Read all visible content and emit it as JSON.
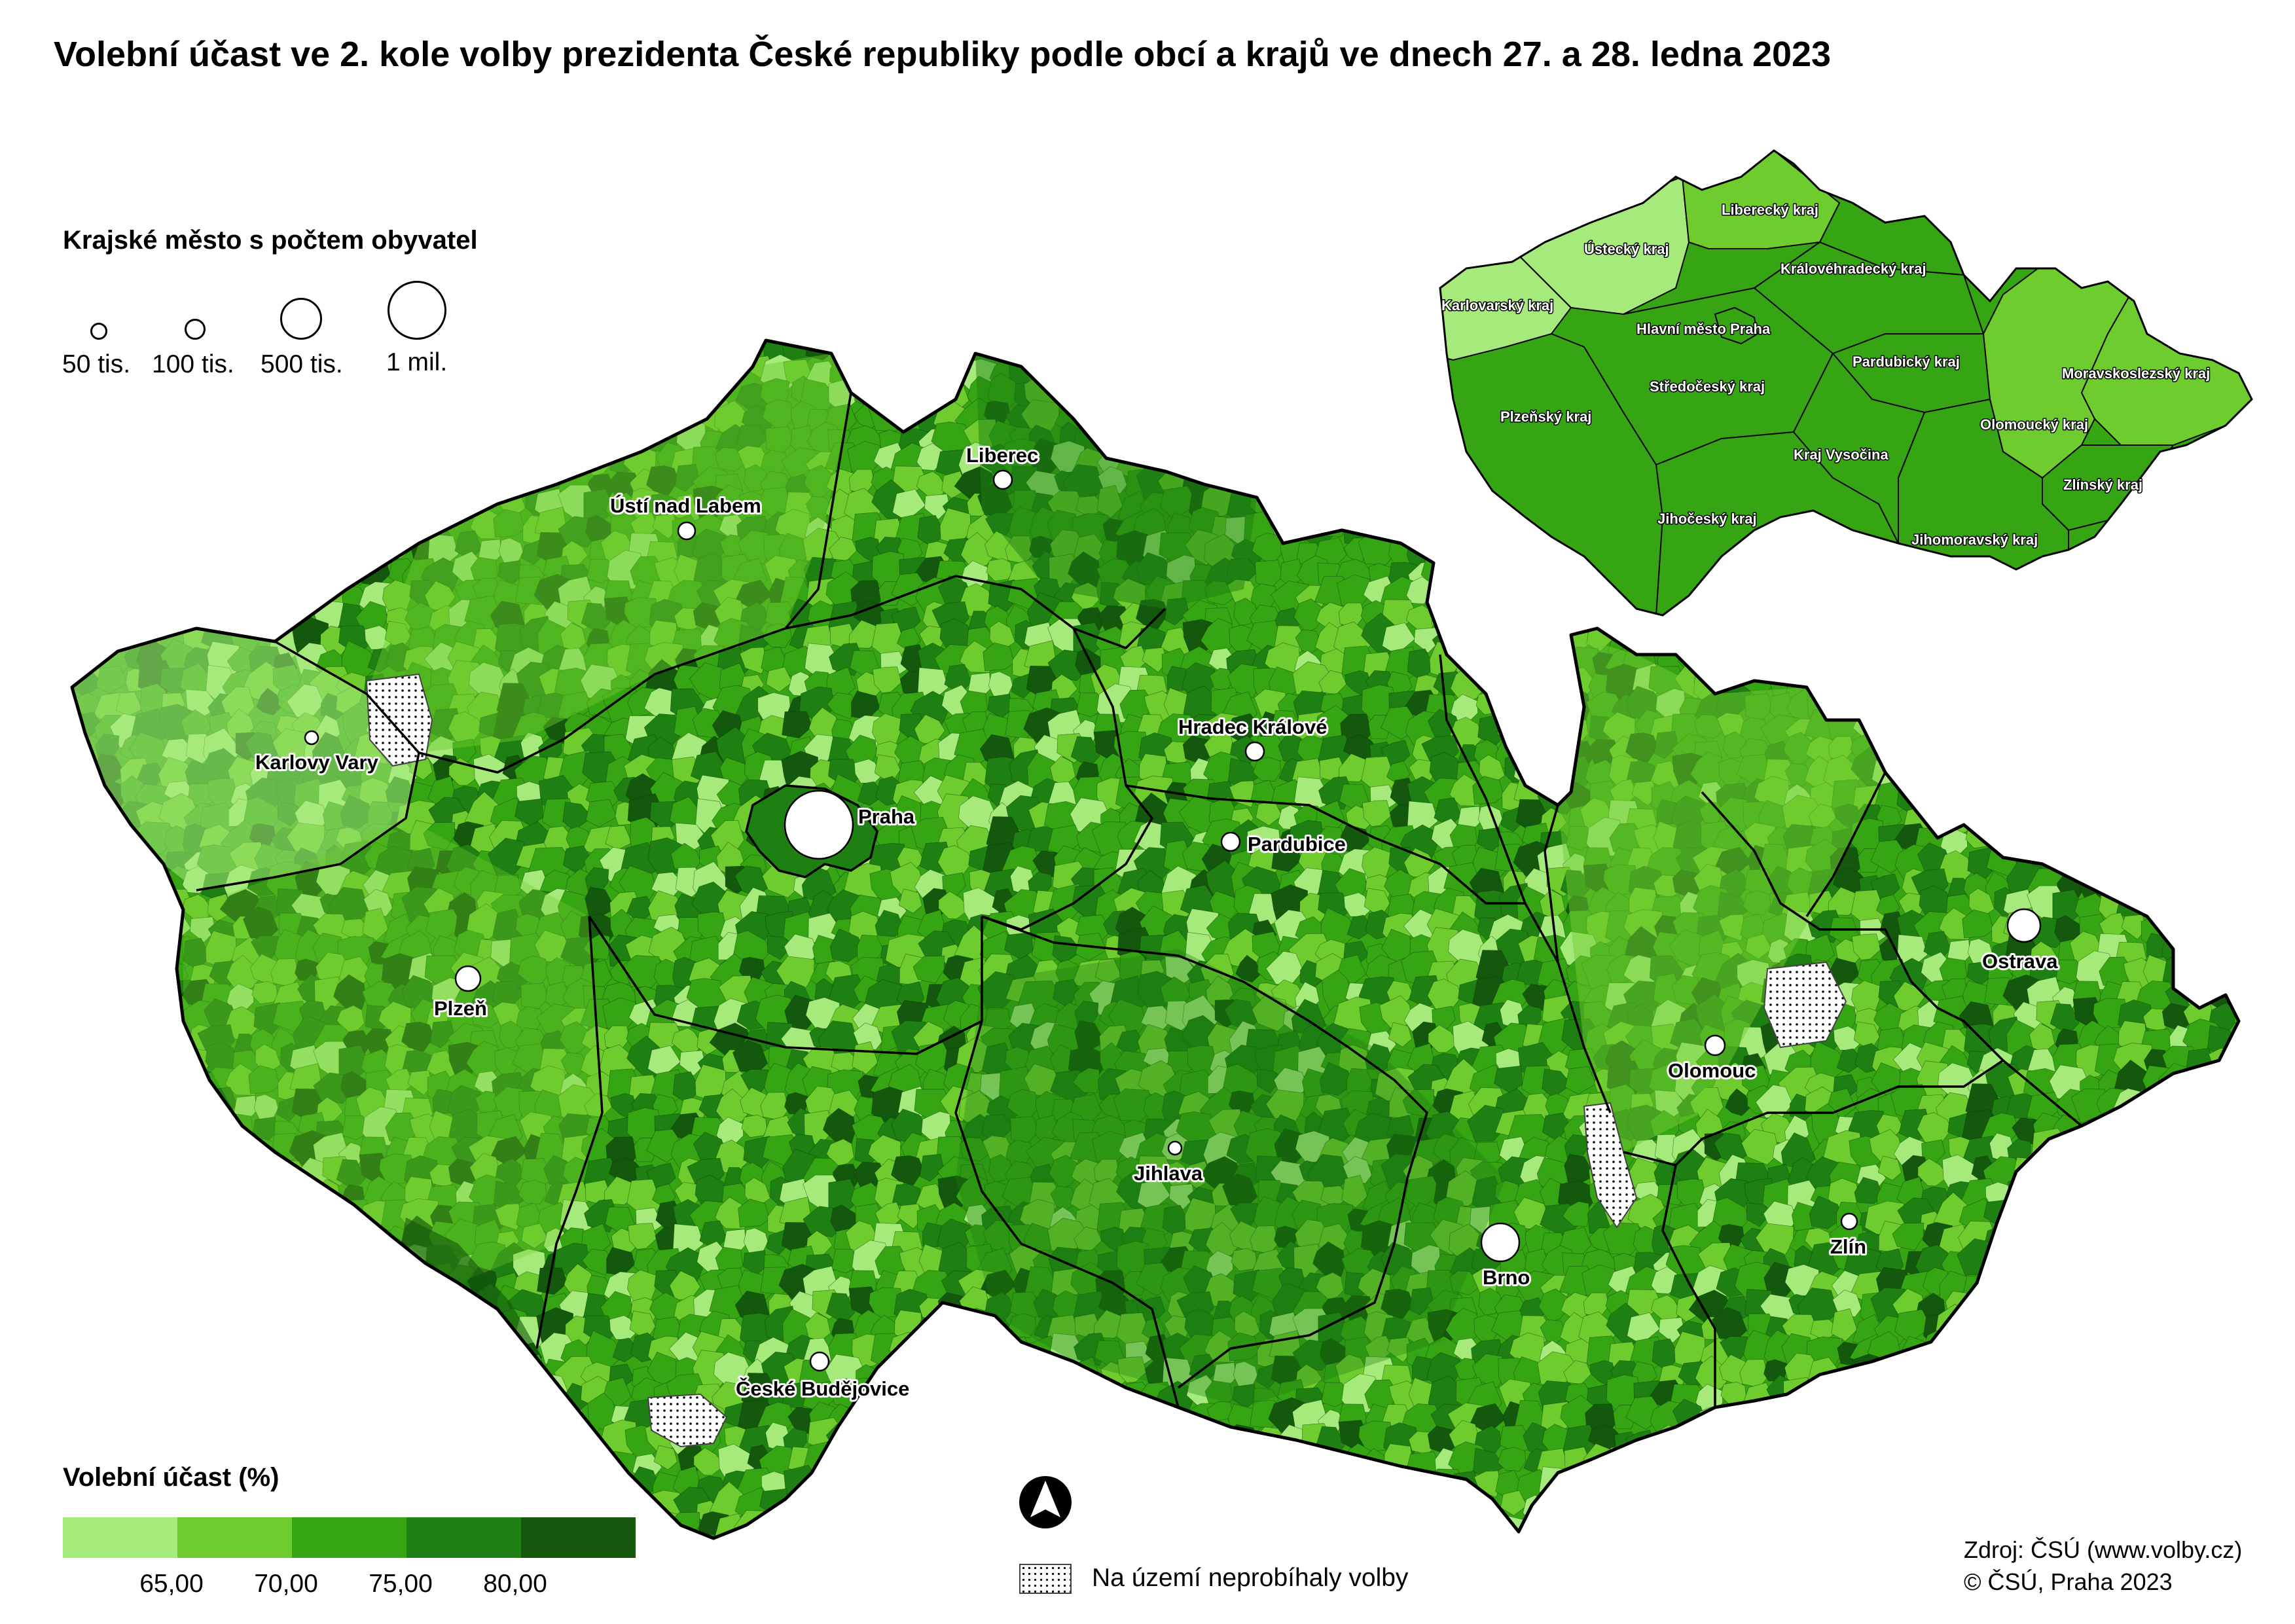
{
  "title": "Volební účast ve 2. kole volby prezidenta České republiky podle obcí a krajů ve dnech 27. a 28. ledna 2023",
  "city_legend": {
    "heading": "Krajské město s počtem obyvatel",
    "sizes": [
      "50 tis.",
      "100 tis.",
      "500 tis.",
      "1 mil."
    ]
  },
  "cities": [
    {
      "name": "Praha"
    },
    {
      "name": "Liberec"
    },
    {
      "name": "Ústí nad Labem"
    },
    {
      "name": "Karlovy Vary"
    },
    {
      "name": "Hradec Králové"
    },
    {
      "name": "Pardubice"
    },
    {
      "name": "Plzeň"
    },
    {
      "name": "Ostrava"
    },
    {
      "name": "Olomouc"
    },
    {
      "name": "Jihlava"
    },
    {
      "name": "Brno"
    },
    {
      "name": "Zlín"
    },
    {
      "name": "České Budějovice"
    }
  ],
  "regions": [
    "Liberecký kraj",
    "Ústecký kraj",
    "Královéhradecký kraj",
    "Karlovarský kraj",
    "Hlavní město Praha",
    "Pardubický kraj",
    "Moravskoslezský kraj",
    "Středočeský kraj",
    "Plzeňský kraj",
    "Olomoucký kraj",
    "Kraj Vysočina",
    "Zlínský kraj",
    "Jihočeský kraj",
    "Jihomoravský kraj"
  ],
  "turnout_legend": {
    "heading": "Volební účast (%)",
    "colors": [
      "#a6ea7c",
      "#6fcc2f",
      "#36a514",
      "#1e7f12",
      "#13580c"
    ],
    "ticks": [
      "65,00",
      "70,00",
      "75,00",
      "80,00"
    ]
  },
  "nodata": {
    "label": "Na území neprobíhaly volby"
  },
  "source": {
    "line1": "Zdroj: ČSÚ (www.volby.cz)",
    "line2": "© ČSÚ, Praha 2023"
  },
  "icons": {
    "north_arrow": "north-arrow-icon"
  }
}
